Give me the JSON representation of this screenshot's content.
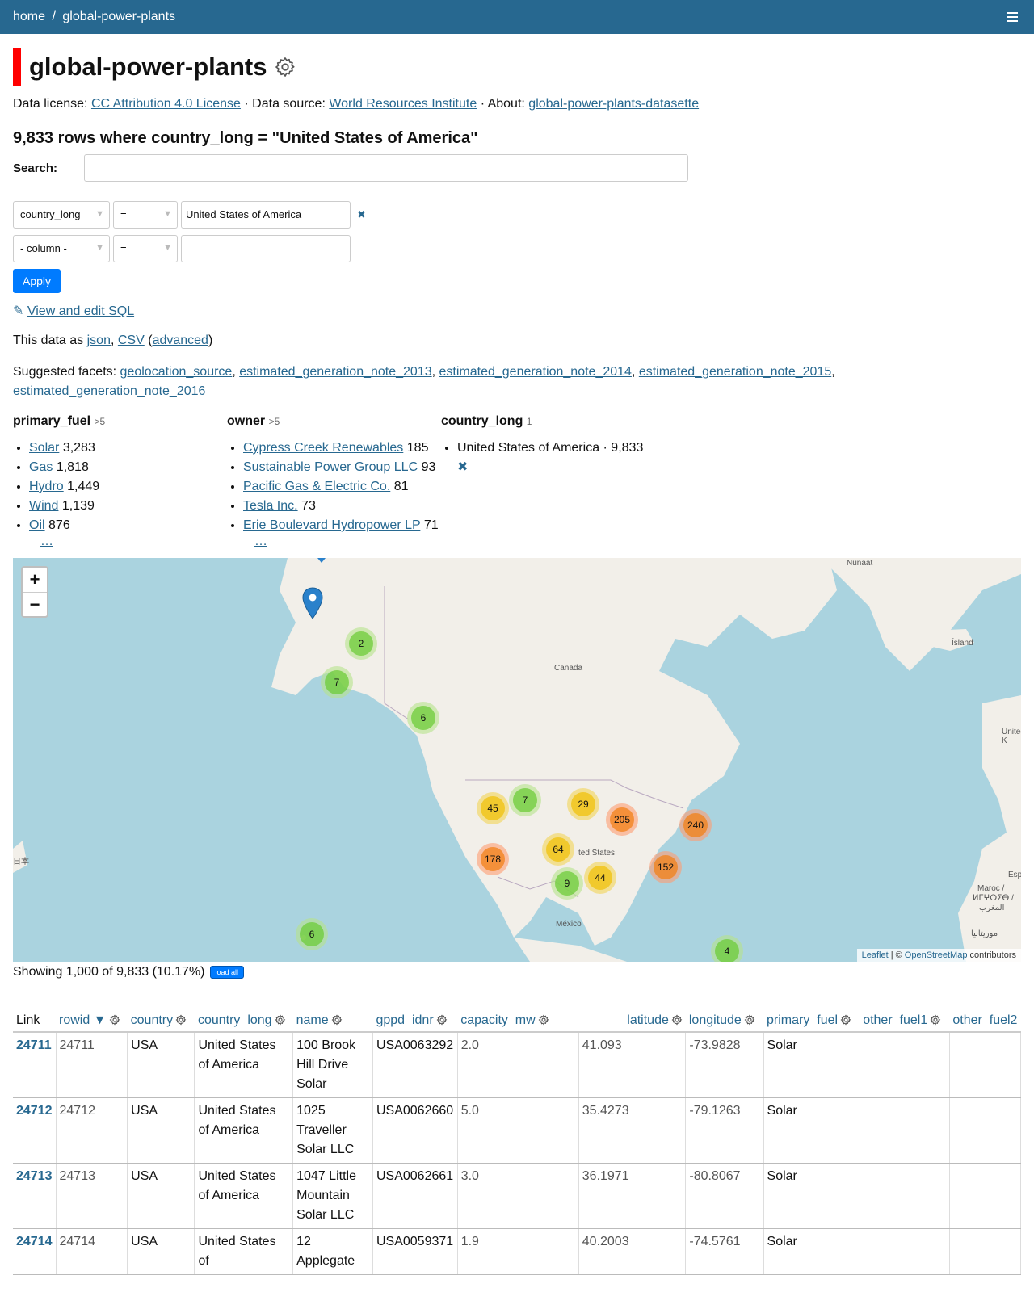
{
  "breadcrumb": {
    "home": "home",
    "sep": "/",
    "current": "global-power-plants"
  },
  "title": "global-power-plants",
  "license": {
    "label": "Data license:",
    "license_link": "CC Attribution 4.0 License",
    "source_label": "· Data source:",
    "source_link": "World Resources Institute",
    "about_label": "· About:",
    "about_link": "global-power-plants-datasette"
  },
  "count_heading": "9,833 rows where country_long = \"United States of America\"",
  "search": {
    "label": "Search:",
    "value": ""
  },
  "filters": [
    {
      "column": "country_long",
      "op": "=",
      "value": "United States of America",
      "remove": "✖"
    },
    {
      "column": "- column -",
      "op": "=",
      "value": ""
    }
  ],
  "apply_label": "Apply",
  "sql": {
    "icon": "✎",
    "label": "View and edit SQL"
  },
  "data_as": {
    "prefix": "This data as",
    "json": "json",
    "comma": ",",
    "csv": "CSV",
    "open": "(",
    "advanced": "advanced",
    "close": ")"
  },
  "suggested": {
    "label": "Suggested facets:",
    "items": [
      "geolocation_source",
      "estimated_generation_note_2013",
      "estimated_generation_note_2014",
      "estimated_generation_note_2015",
      "estimated_generation_note_2016"
    ]
  },
  "facets": [
    {
      "name": "primary_fuel",
      "count": ">5",
      "items": [
        {
          "label": "Solar",
          "count": "3,283"
        },
        {
          "label": "Gas",
          "count": "1,818"
        },
        {
          "label": "Hydro",
          "count": "1,449"
        },
        {
          "label": "Wind",
          "count": "1,139"
        },
        {
          "label": "Oil",
          "count": "876"
        }
      ],
      "more": "…"
    },
    {
      "name": "owner",
      "count": ">5",
      "items": [
        {
          "label": "Cypress Creek Renewables",
          "count": "185"
        },
        {
          "label": "Sustainable Power Group LLC",
          "count": "93"
        },
        {
          "label": "Pacific Gas & Electric Co.",
          "count": "81"
        },
        {
          "label": "Tesla Inc.",
          "count": "73"
        },
        {
          "label": "Erie Boulevard Hydropower LP",
          "count": "71"
        }
      ],
      "more": "…"
    },
    {
      "name": "country_long",
      "count": "1",
      "selected": "United States of America · 9,833",
      "remove": "✖"
    }
  ],
  "map": {
    "zoom_in": "+",
    "zoom_out": "−",
    "labels": {
      "nunaat": "Nunaat",
      "island": "Ísland",
      "canada": "Canada",
      "united_k": "United K",
      "esp": "Esp",
      "japan": "日本",
      "states": "ted States",
      "mexico": "México",
      "maroc": "Maroc /",
      "maroc2": "ⵍⵎⵖⵔⵉⴱ /",
      "maroc3": "المغرب",
      "mauritania": "موريتانيا"
    },
    "clusters": [
      "2",
      "7",
      "6",
      "45",
      "7",
      "29",
      "205",
      "240",
      "64",
      "178",
      "152",
      "9",
      "44",
      "6",
      "4"
    ],
    "attribution": {
      "leaflet": "Leaflet",
      "sep": "| ©",
      "osm": "OpenStreetMap",
      "contrib": "contributors"
    },
    "colors": {
      "water": "#aad3df",
      "land": "#f2efe9",
      "green": "#6ecc39",
      "yellow": "#f0c20c",
      "orange": "#f18017",
      "pin": "#2a81cb"
    }
  },
  "showing": {
    "text": "Showing 1,000 of 9,833 (10.17%)",
    "load_all": "load all"
  },
  "table": {
    "headers": [
      "Link",
      "rowid ▼",
      "country",
      "country_long",
      "name",
      "gppd_idnr",
      "capacity_mw",
      "latitude",
      "longitude",
      "primary_fuel",
      "other_fuel1",
      "other_fuel2"
    ],
    "rows": [
      [
        "24711",
        "24711",
        "USA",
        "United States of America",
        "100 Brook Hill Drive Solar",
        "USA0063292",
        "2.0",
        "41.093",
        "-73.9828",
        "Solar",
        "",
        ""
      ],
      [
        "24712",
        "24712",
        "USA",
        "United States of America",
        "1025 Traveller Solar  LLC",
        "USA0062660",
        "5.0",
        "35.4273",
        "-79.1263",
        "Solar",
        "",
        ""
      ],
      [
        "24713",
        "24713",
        "USA",
        "United States of America",
        "1047 Little Mountain Solar  LLC",
        "USA0062661",
        "3.0",
        "36.1971",
        "-80.8067",
        "Solar",
        "",
        ""
      ],
      [
        "24714",
        "24714",
        "USA",
        "United States of",
        "12 Applegate",
        "USA0059371",
        "1.9",
        "40.2003",
        "-74.5761",
        "Solar",
        "",
        ""
      ]
    ]
  }
}
